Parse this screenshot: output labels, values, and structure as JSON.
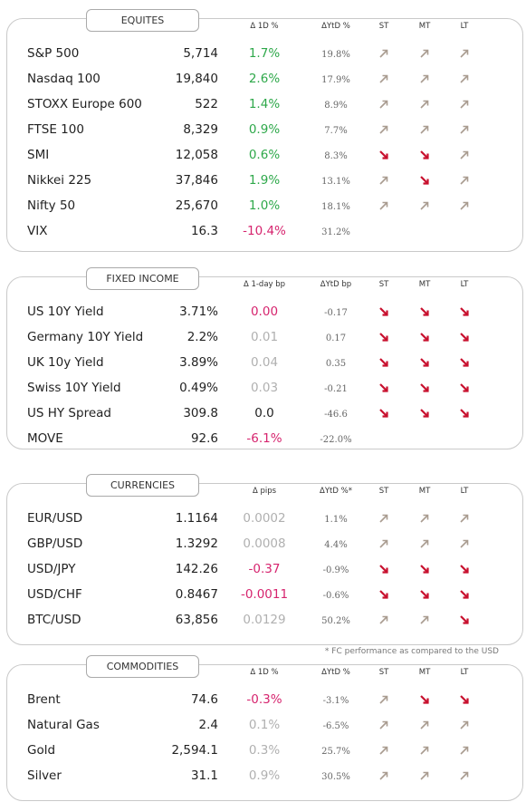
{
  "sections": [
    {
      "title": "EQUITES",
      "headers": [
        "Δ 1D %",
        "ΔYtD %",
        "ST",
        "MT",
        "LT"
      ],
      "rows": [
        {
          "name": "S&P 500",
          "level": "5,714",
          "change": "1.7%",
          "change_color": "#2ea84a",
          "ytd": "19.8%",
          "trend": [
            "up",
            "up",
            "up"
          ]
        },
        {
          "name": "Nasdaq 100",
          "level": "19,840",
          "change": "2.6%",
          "change_color": "#2ea84a",
          "ytd": "17.9%",
          "trend": [
            "up",
            "up",
            "up"
          ]
        },
        {
          "name": "STOXX Europe 600",
          "level": "522",
          "change": "1.4%",
          "change_color": "#2ea84a",
          "ytd": "8.9%",
          "trend": [
            "up",
            "up",
            "up"
          ]
        },
        {
          "name": "FTSE 100",
          "level": "8,329",
          "change": "0.9%",
          "change_color": "#2ea84a",
          "ytd": "7.7%",
          "trend": [
            "up",
            "up",
            "up"
          ]
        },
        {
          "name": "SMI",
          "level": "12,058",
          "change": "0.6%",
          "change_color": "#2ea84a",
          "ytd": "8.3%",
          "trend": [
            "down",
            "down",
            "up"
          ]
        },
        {
          "name": "Nikkei 225",
          "level": "37,846",
          "change": "1.9%",
          "change_color": "#2ea84a",
          "ytd": "13.1%",
          "trend": [
            "up",
            "down",
            "up"
          ]
        },
        {
          "name": "Nifty 50",
          "level": "25,670",
          "change": "1.0%",
          "change_color": "#2ea84a",
          "ytd": "18.1%",
          "trend": [
            "up",
            "up",
            "up"
          ]
        },
        {
          "name": "VIX",
          "level": "16.3",
          "change": "-10.4%",
          "change_color": "#d6246e",
          "ytd": "31.2%",
          "trend": []
        }
      ]
    },
    {
      "title": "FIXED INCOME",
      "headers": [
        "Δ 1-day bp",
        "ΔYtD bp",
        "ST",
        "MT",
        "LT"
      ],
      "rows": [
        {
          "name": "US 10Y Yield",
          "level": "3.71%",
          "change": "0.00",
          "change_color": "#d6246e",
          "ytd": "-0.17",
          "trend": [
            "down",
            "down",
            "down"
          ]
        },
        {
          "name": "Germany 10Y Yield",
          "level": "2.2%",
          "change": "0.01",
          "change_color": "#b0b0b0",
          "ytd": "0.17",
          "trend": [
            "down",
            "down",
            "down"
          ]
        },
        {
          "name": "UK 10y Yield",
          "level": "3.89%",
          "change": "0.04",
          "change_color": "#b0b0b0",
          "ytd": "0.35",
          "trend": [
            "down",
            "down",
            "down"
          ]
        },
        {
          "name": "Swiss 10Y Yield",
          "level": "0.49%",
          "change": "0.03",
          "change_color": "#b0b0b0",
          "ytd": "-0.21",
          "trend": [
            "down",
            "down",
            "down"
          ]
        },
        {
          "name": "US HY Spread",
          "level": "309.8",
          "change": "0.0",
          "change_color": "#222222",
          "ytd": "-46.6",
          "trend": [
            "down",
            "down",
            "down"
          ]
        },
        {
          "name": "MOVE",
          "level": "92.6",
          "change": "-6.1%",
          "change_color": "#d6246e",
          "ytd": "-22.0%",
          "trend": []
        }
      ]
    },
    {
      "title": "CURRENCIES",
      "headers": [
        "Δ pips",
        "ΔYtD %*",
        "ST",
        "MT",
        "LT"
      ],
      "rows": [
        {
          "name": "EUR/USD",
          "level": "1.1164",
          "change": "0.0002",
          "change_color": "#b0b0b0",
          "ytd": "1.1%",
          "trend": [
            "up",
            "up",
            "up"
          ]
        },
        {
          "name": "GBP/USD",
          "level": "1.3292",
          "change": "0.0008",
          "change_color": "#b0b0b0",
          "ytd": "4.4%",
          "trend": [
            "up",
            "up",
            "up"
          ]
        },
        {
          "name": "USD/JPY",
          "level": "142.26",
          "change": "-0.37",
          "change_color": "#d6246e",
          "ytd": "-0.9%",
          "trend": [
            "down",
            "down",
            "down"
          ]
        },
        {
          "name": "USD/CHF",
          "level": "0.8467",
          "change": "-0.0011",
          "change_color": "#d6246e",
          "ytd": "-0.6%",
          "trend": [
            "down",
            "down",
            "down"
          ]
        },
        {
          "name": "BTC/USD",
          "level": "63,856",
          "change": "0.0129",
          "change_color": "#b0b0b0",
          "ytd": "50.2%",
          "trend": [
            "up",
            "up",
            "down"
          ]
        }
      ]
    },
    {
      "title": "COMMODITIES",
      "headers": [
        "Δ 1D %",
        "ΔYtD %",
        "ST",
        "MT",
        "LT"
      ],
      "rows": [
        {
          "name": "Brent",
          "level": "74.6",
          "change": "-0.3%",
          "change_color": "#d6246e",
          "ytd": "-3.1%",
          "trend": [
            "up",
            "down",
            "down"
          ]
        },
        {
          "name": "Natural Gas",
          "level": "2.4",
          "change": "0.1%",
          "change_color": "#b0b0b0",
          "ytd": "-6.5%",
          "trend": [
            "up",
            "up",
            "up"
          ]
        },
        {
          "name": "Gold",
          "level": "2,594.1",
          "change": "0.3%",
          "change_color": "#b0b0b0",
          "ytd": "25.7%",
          "trend": [
            "up",
            "up",
            "up"
          ]
        },
        {
          "name": "Silver",
          "level": "31.1",
          "change": "0.9%",
          "change_color": "#b0b0b0",
          "ytd": "30.5%",
          "trend": [
            "up",
            "up",
            "up"
          ]
        }
      ]
    }
  ],
  "footnote": "* FC performance as compared to the USD"
}
